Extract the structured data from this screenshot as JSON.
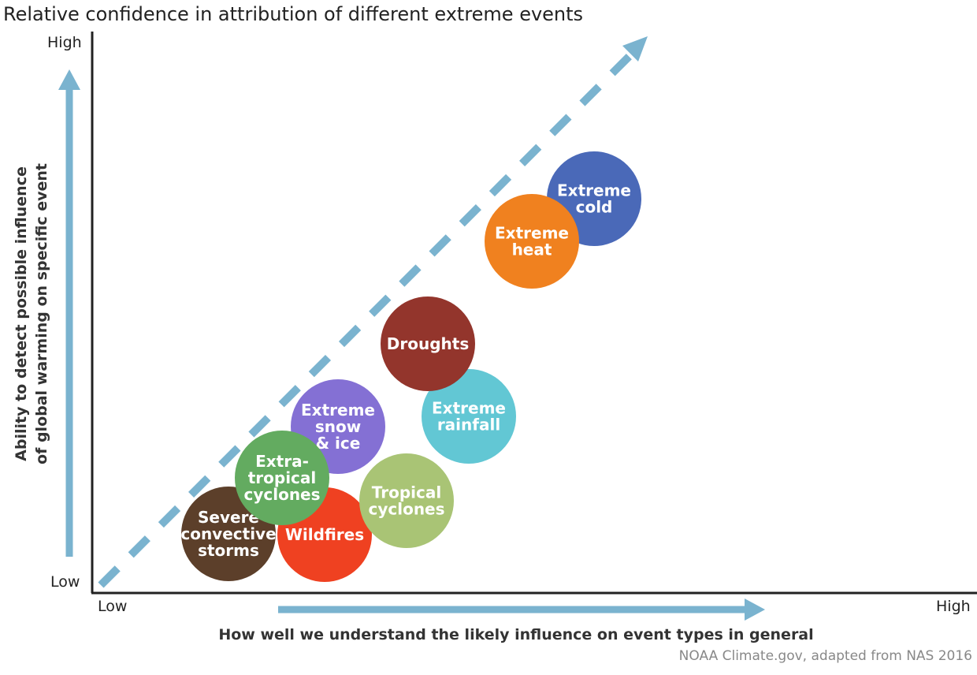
{
  "title": "Relative confidence in attribution of different extreme events",
  "y_axis": {
    "label_line1": "Ability to detect possible influence",
    "label_line2": "of global warming on specific event",
    "high": "High",
    "low": "Low"
  },
  "x_axis": {
    "label": "How well we understand the likely influence on event types in general",
    "low": "Low",
    "high": "High"
  },
  "credit": "NOAA Climate.gov, adapted from NAS 2016",
  "colors": {
    "arrow": "#7ab3cf",
    "axis": "#222222"
  },
  "events": [
    {
      "lines": [
        "Extreme",
        "snow",
        "& ice"
      ],
      "color": "#8470d4"
    },
    {
      "lines": [
        "Severe",
        "convective",
        "storms"
      ],
      "color": "#5c3f2a"
    },
    {
      "lines": [
        "Wildfires"
      ],
      "color": "#ef4121"
    },
    {
      "lines": [
        "Extra-",
        "tropical",
        "cyclones"
      ],
      "color": "#63ab60"
    },
    {
      "lines": [
        "Tropical",
        "cyclones"
      ],
      "color": "#a9c475"
    },
    {
      "lines": [
        "Extreme",
        "rainfall"
      ],
      "color": "#62c7d4"
    },
    {
      "lines": [
        "Droughts"
      ],
      "color": "#93352c"
    },
    {
      "lines": [
        "Extreme",
        "cold"
      ],
      "color": "#4a69b8"
    },
    {
      "lines": [
        "Extreme",
        "heat"
      ],
      "color": "#f0811f"
    }
  ]
}
